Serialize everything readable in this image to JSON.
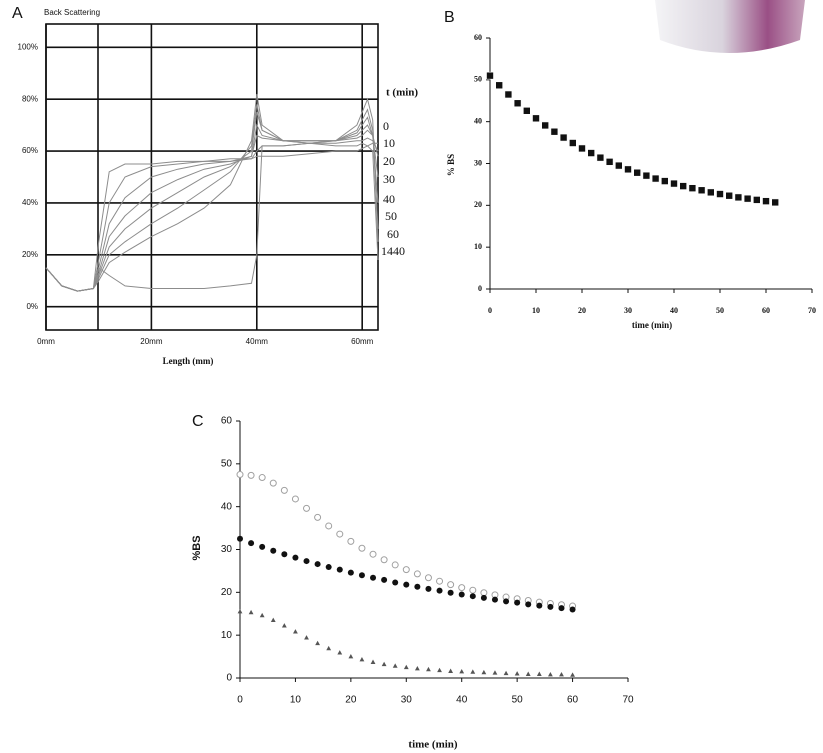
{
  "chart_data": [
    {
      "type": "line",
      "panel": "A",
      "title": "Back Scattering",
      "xlabel": "Length (mm)",
      "legend_title": "t (min)",
      "grid": true,
      "xlim": [
        0,
        63
      ],
      "ylim": [
        -9,
        109
      ],
      "xticks": [
        {
          "value": 0,
          "label": "0mm"
        },
        {
          "value": 20,
          "label": "20mm"
        },
        {
          "value": 40,
          "label": "40mm"
        },
        {
          "value": 60,
          "label": "60mm"
        }
      ],
      "yticks": [
        {
          "value": 0,
          "label": "0%"
        },
        {
          "value": 20,
          "label": "20%"
        },
        {
          "value": 40,
          "label": "40%"
        },
        {
          "value": 60,
          "label": "60%"
        },
        {
          "value": 80,
          "label": "80%"
        },
        {
          "value": 100,
          "label": "100%"
        }
      ],
      "x": [
        0,
        3,
        6,
        9,
        10,
        12,
        15,
        20,
        25,
        30,
        35,
        39,
        40,
        41,
        45,
        50,
        55,
        59,
        60,
        61,
        62,
        63
      ],
      "series": [
        {
          "name": "0",
          "color": "#8c8c8c",
          "values": [
            15,
            8,
            6,
            7,
            25,
            52,
            55,
            55,
            56,
            56,
            57,
            57,
            58,
            58,
            58,
            59,
            60,
            60,
            61,
            62,
            63,
            63
          ]
        },
        {
          "name": "10",
          "color": "#8c8c8c",
          "values": [
            15,
            8,
            6,
            7,
            18,
            40,
            50,
            54,
            55,
            56,
            56,
            57,
            60,
            62,
            62,
            63,
            63,
            64,
            64,
            65,
            64,
            60
          ]
        },
        {
          "name": "20",
          "color": "#8c8c8c",
          "values": [
            15,
            8,
            6,
            7,
            15,
            32,
            42,
            50,
            53,
            55,
            56,
            58,
            66,
            65,
            64,
            64,
            64,
            65,
            66,
            68,
            66,
            58
          ]
        },
        {
          "name": "30",
          "color": "#8c8c8c",
          "values": [
            15,
            8,
            6,
            7,
            13,
            27,
            35,
            44,
            49,
            53,
            55,
            58,
            70,
            66,
            64,
            64,
            64,
            66,
            68,
            70,
            66,
            50
          ]
        },
        {
          "name": "40",
          "color": "#8c8c8c",
          "values": [
            15,
            8,
            6,
            7,
            12,
            23,
            30,
            38,
            44,
            50,
            54,
            60,
            75,
            68,
            64,
            64,
            64,
            67,
            70,
            73,
            66,
            40
          ]
        },
        {
          "name": "50",
          "color": "#8c8c8c",
          "values": [
            15,
            8,
            6,
            7,
            11,
            20,
            25,
            32,
            38,
            45,
            52,
            62,
            78,
            68,
            64,
            63,
            64,
            68,
            72,
            76,
            68,
            30
          ]
        },
        {
          "name": "60",
          "color": "#8c8c8c",
          "values": [
            15,
            8,
            6,
            7,
            10,
            17,
            21,
            27,
            32,
            38,
            47,
            64,
            82,
            70,
            64,
            63,
            64,
            70,
            75,
            80,
            72,
            25
          ]
        },
        {
          "name": "1440",
          "color": "#8c8c8c",
          "values": [
            15,
            8,
            6,
            7,
            15,
            12,
            8,
            7,
            7,
            7,
            8,
            9,
            20,
            62,
            62,
            63,
            62,
            62,
            63,
            62,
            60,
            18
          ]
        }
      ]
    },
    {
      "type": "scatter",
      "panel": "B",
      "xlabel": "time (min)",
      "ylabel": "% BS",
      "grid": false,
      "xlim": [
        0,
        70
      ],
      "ylim": [
        0,
        60
      ],
      "xticks": [
        0,
        10,
        20,
        30,
        40,
        50,
        60,
        70
      ],
      "yticks": [
        0,
        10,
        20,
        30,
        40,
        50,
        60
      ],
      "x": [
        0,
        2,
        4,
        6,
        8,
        10,
        12,
        14,
        16,
        18,
        20,
        22,
        24,
        26,
        28,
        30,
        32,
        34,
        36,
        38,
        40,
        42,
        44,
        46,
        48,
        50,
        52,
        54,
        56,
        58,
        60,
        62
      ],
      "series": [
        {
          "color": "#111111",
          "marker": "square",
          "values": [
            51.0,
            48.7,
            46.5,
            44.4,
            42.6,
            40.8,
            39.1,
            37.6,
            36.2,
            34.9,
            33.6,
            32.5,
            31.4,
            30.4,
            29.5,
            28.6,
            27.8,
            27.1,
            26.4,
            25.8,
            25.2,
            24.6,
            24.1,
            23.6,
            23.1,
            22.7,
            22.3,
            21.9,
            21.6,
            21.3,
            21.0,
            20.7
          ]
        }
      ]
    },
    {
      "type": "scatter",
      "panel": "C",
      "xlabel": "time (min)",
      "ylabel": "%BS",
      "grid": false,
      "xlim": [
        0,
        70
      ],
      "ylim": [
        0,
        60
      ],
      "xticks": [
        0,
        10,
        20,
        30,
        40,
        50,
        60,
        70
      ],
      "yticks": [
        0,
        10,
        20,
        30,
        40,
        50,
        60
      ],
      "x": [
        0,
        2,
        4,
        6,
        8,
        10,
        12,
        14,
        16,
        18,
        20,
        22,
        24,
        26,
        28,
        30,
        32,
        34,
        36,
        38,
        40,
        42,
        44,
        46,
        48,
        50,
        52,
        54,
        56,
        58,
        60
      ],
      "series": [
        {
          "color": "#a0a0a0",
          "marker": "circle",
          "values": [
            47.5,
            47.3,
            46.8,
            45.5,
            43.8,
            41.8,
            39.6,
            37.5,
            35.5,
            33.6,
            31.9,
            30.3,
            28.9,
            27.6,
            26.4,
            25.3,
            24.3,
            23.4,
            22.6,
            21.8,
            21.1,
            20.5,
            19.9,
            19.4,
            18.9,
            18.5,
            18.1,
            17.7,
            17.4,
            17.1,
            16.8
          ]
        },
        {
          "color": "#111111",
          "marker": "disc",
          "values": [
            32.5,
            31.5,
            30.6,
            29.7,
            28.9,
            28.1,
            27.3,
            26.6,
            25.9,
            25.3,
            24.6,
            24.0,
            23.4,
            22.9,
            22.3,
            21.8,
            21.3,
            20.8,
            20.4,
            19.9,
            19.5,
            19.1,
            18.7,
            18.3,
            17.9,
            17.6,
            17.2,
            16.9,
            16.6,
            16.3,
            16.0
          ]
        },
        {
          "color": "#555555",
          "marker": "triangle",
          "values": [
            15.5,
            15.3,
            14.6,
            13.5,
            12.2,
            10.8,
            9.4,
            8.1,
            6.9,
            5.9,
            5.0,
            4.3,
            3.7,
            3.2,
            2.8,
            2.5,
            2.2,
            2.0,
            1.8,
            1.6,
            1.5,
            1.4,
            1.3,
            1.2,
            1.1,
            1.0,
            0.9,
            0.9,
            0.8,
            0.8,
            0.7
          ]
        }
      ]
    }
  ]
}
